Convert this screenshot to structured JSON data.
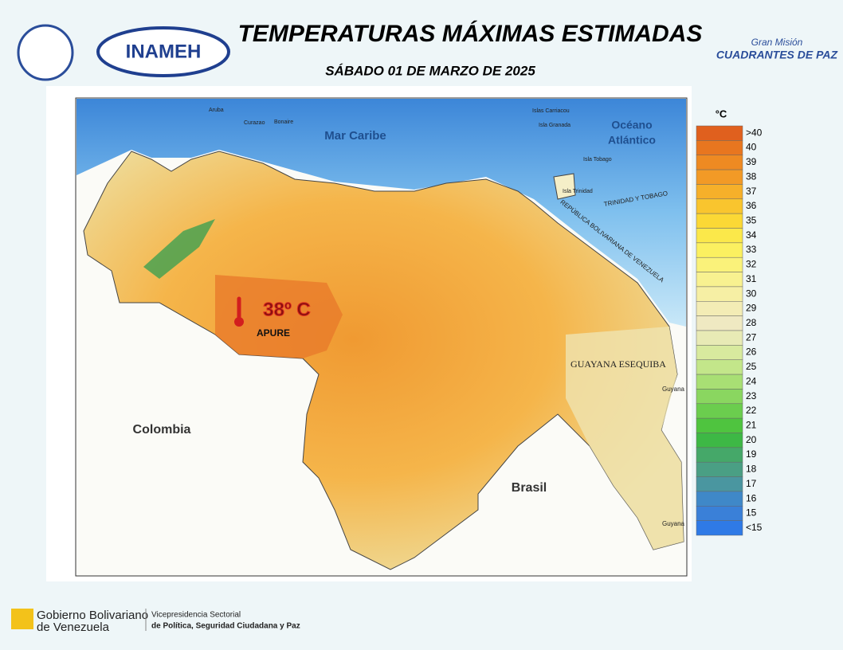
{
  "header": {
    "title": "TEMPERATURAS MÁXIMAS ESTIMADAS",
    "date": "SÁBADO 01 DE MARZO DE 2025",
    "logo_left": "INAMEH",
    "logo_right_top": "Gran Misión",
    "logo_right": "CUADRANTES DE PAZ"
  },
  "map": {
    "labels": {
      "sea": "Mar Caribe",
      "ocean_1": "Océano",
      "ocean_2": "Atlántico",
      "colombia": "Colombia",
      "brasil": "Brasil",
      "esequiba": "GUAYANA ESEQUIBA",
      "tt": "TRINIDAD Y TOBAGO",
      "border": "REPÚBLICA BOLIVARIANA DE VENEZUELA",
      "guyana_1": "Guyana",
      "guyana_2": "Guyana",
      "trinidad": "Isla Trinidad",
      "tobago": "Isla Tobago",
      "granada": "Isla Granada",
      "carriacou": "Islas Carriacou",
      "aruba": "Aruba",
      "curazao": "Curazao",
      "bonaire": "Bonaire"
    },
    "highlight": {
      "value": "38º C",
      "state": "APURE"
    }
  },
  "legend": {
    "unit": "°C",
    "items": [
      {
        "label": ">40",
        "color": "#e0601e"
      },
      {
        "label": "40",
        "color": "#e8761f"
      },
      {
        "label": "39",
        "color": "#ee8a22"
      },
      {
        "label": "38",
        "color": "#f29a26"
      },
      {
        "label": "37",
        "color": "#f6b02a"
      },
      {
        "label": "36",
        "color": "#f9c52e"
      },
      {
        "label": "35",
        "color": "#fbd835"
      },
      {
        "label": "34",
        "color": "#fbe84a"
      },
      {
        "label": "33",
        "color": "#fbf060"
      },
      {
        "label": "32",
        "color": "#faf27a"
      },
      {
        "label": "31",
        "color": "#f8f190"
      },
      {
        "label": "30",
        "color": "#f6efa4"
      },
      {
        "label": "29",
        "color": "#f3ecb5"
      },
      {
        "label": "28",
        "color": "#efe9c2"
      },
      {
        "label": "27",
        "color": "#e8eab5"
      },
      {
        "label": "26",
        "color": "#d8ea9e"
      },
      {
        "label": "25",
        "color": "#c3e68a"
      },
      {
        "label": "24",
        "color": "#a8df74"
      },
      {
        "label": "23",
        "color": "#8ad660"
      },
      {
        "label": "22",
        "color": "#6bcd4e"
      },
      {
        "label": "21",
        "color": "#4fc43f"
      },
      {
        "label": "20",
        "color": "#3db845"
      },
      {
        "label": "19",
        "color": "#45a869"
      },
      {
        "label": "18",
        "color": "#4a9f84"
      },
      {
        "label": "17",
        "color": "#4a96a0"
      },
      {
        "label": "16",
        "color": "#3f88c8"
      },
      {
        "label": "15",
        "color": "#3a80d8"
      },
      {
        "label": "<15",
        "color": "#2f7ae6"
      }
    ]
  },
  "footer": {
    "gov_1": "Gobierno Bolivariano",
    "gov_2": "de Venezuela",
    "vice_1": "Vicepresidencia Sectorial",
    "vice_2": "de Política, Seguridad Ciudadana y Paz"
  }
}
